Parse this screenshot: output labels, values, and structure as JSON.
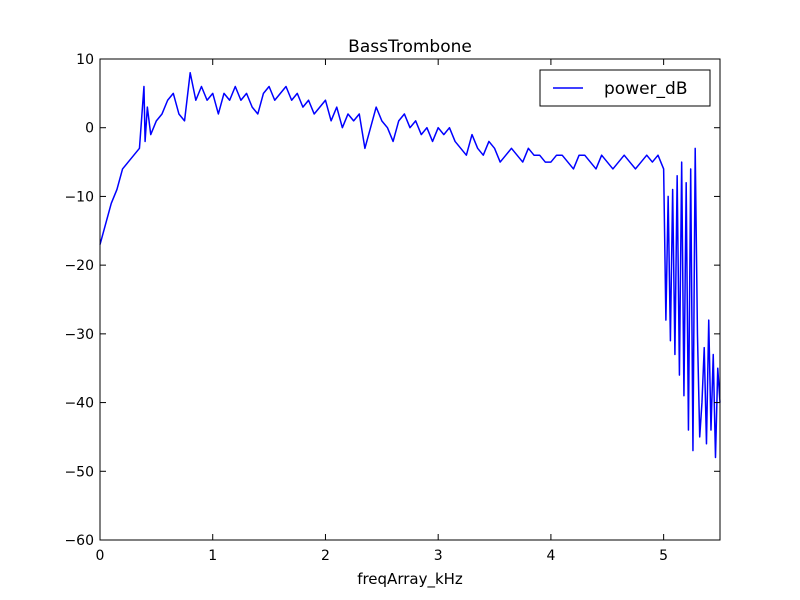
{
  "chart_data": {
    "type": "line",
    "title": "BassTrombone",
    "xlabel": "freqArray_kHz",
    "ylabel": "",
    "xlim": [
      0,
      5.5
    ],
    "ylim": [
      -60,
      10
    ],
    "xticks": [
      0,
      1,
      2,
      3,
      4,
      5
    ],
    "yticks": [
      10,
      0,
      -10,
      -20,
      -30,
      -40,
      -50,
      -60
    ],
    "xtick_labels": [
      "0",
      "1",
      "2",
      "3",
      "4",
      "5"
    ],
    "ytick_labels": [
      "10",
      "0",
      "−10",
      "−20",
      "−30",
      "−40",
      "−50",
      "−60"
    ],
    "grid": false,
    "legend": {
      "position": "top-right",
      "entries": [
        "power_dB"
      ]
    },
    "series": [
      {
        "name": "power_dB",
        "color": "#0000ff",
        "x": [
          0.0,
          0.05,
          0.1,
          0.15,
          0.2,
          0.25,
          0.3,
          0.35,
          0.39,
          0.4,
          0.42,
          0.45,
          0.5,
          0.55,
          0.6,
          0.65,
          0.7,
          0.75,
          0.8,
          0.85,
          0.9,
          0.95,
          1.0,
          1.05,
          1.1,
          1.15,
          1.2,
          1.25,
          1.3,
          1.35,
          1.4,
          1.45,
          1.5,
          1.55,
          1.6,
          1.65,
          1.7,
          1.75,
          1.8,
          1.85,
          1.9,
          1.95,
          2.0,
          2.05,
          2.1,
          2.15,
          2.2,
          2.25,
          2.3,
          2.35,
          2.4,
          2.45,
          2.5,
          2.55,
          2.6,
          2.65,
          2.7,
          2.75,
          2.8,
          2.85,
          2.9,
          2.95,
          3.0,
          3.05,
          3.1,
          3.15,
          3.2,
          3.25,
          3.3,
          3.35,
          3.4,
          3.45,
          3.5,
          3.55,
          3.6,
          3.65,
          3.7,
          3.75,
          3.8,
          3.85,
          3.9,
          3.95,
          4.0,
          4.05,
          4.1,
          4.15,
          4.2,
          4.25,
          4.3,
          4.35,
          4.4,
          4.45,
          4.5,
          4.55,
          4.6,
          4.65,
          4.7,
          4.75,
          4.8,
          4.85,
          4.9,
          4.95,
          5.0,
          5.02,
          5.04,
          5.06,
          5.08,
          5.1,
          5.12,
          5.14,
          5.16,
          5.18,
          5.2,
          5.22,
          5.24,
          5.26,
          5.28,
          5.3,
          5.32,
          5.34,
          5.36,
          5.38,
          5.4,
          5.42,
          5.44,
          5.46,
          5.48,
          5.5
        ],
        "y": [
          -17,
          -14,
          -11,
          -9,
          -6,
          -5,
          -4,
          -3,
          6,
          -2,
          3,
          -1,
          1,
          2,
          4,
          5,
          2,
          1,
          8,
          4,
          6,
          4,
          5,
          2,
          5,
          4,
          6,
          4,
          5,
          3,
          2,
          5,
          6,
          4,
          5,
          6,
          4,
          5,
          3,
          4,
          2,
          3,
          4,
          1,
          3,
          0,
          2,
          1,
          2,
          -3,
          0,
          3,
          1,
          0,
          -2,
          1,
          2,
          0,
          1,
          -1,
          0,
          -2,
          0,
          -1,
          0,
          -2,
          -3,
          -4,
          -1,
          -3,
          -4,
          -2,
          -3,
          -5,
          -4,
          -3,
          -4,
          -5,
          -3,
          -4,
          -4,
          -5,
          -5,
          -4,
          -4,
          -5,
          -6,
          -4,
          -4,
          -5,
          -6,
          -4,
          -5,
          -6,
          -5,
          -4,
          -5,
          -6,
          -5,
          -4,
          -5,
          -4,
          -6,
          -28,
          -10,
          -31,
          -9,
          -33,
          -7,
          -36,
          -5,
          -39,
          -8,
          -44,
          -6,
          -47,
          -3,
          -30,
          -45,
          -40,
          -32,
          -46,
          -28,
          -44,
          -33,
          -48,
          -35,
          -40
        ]
      }
    ]
  }
}
